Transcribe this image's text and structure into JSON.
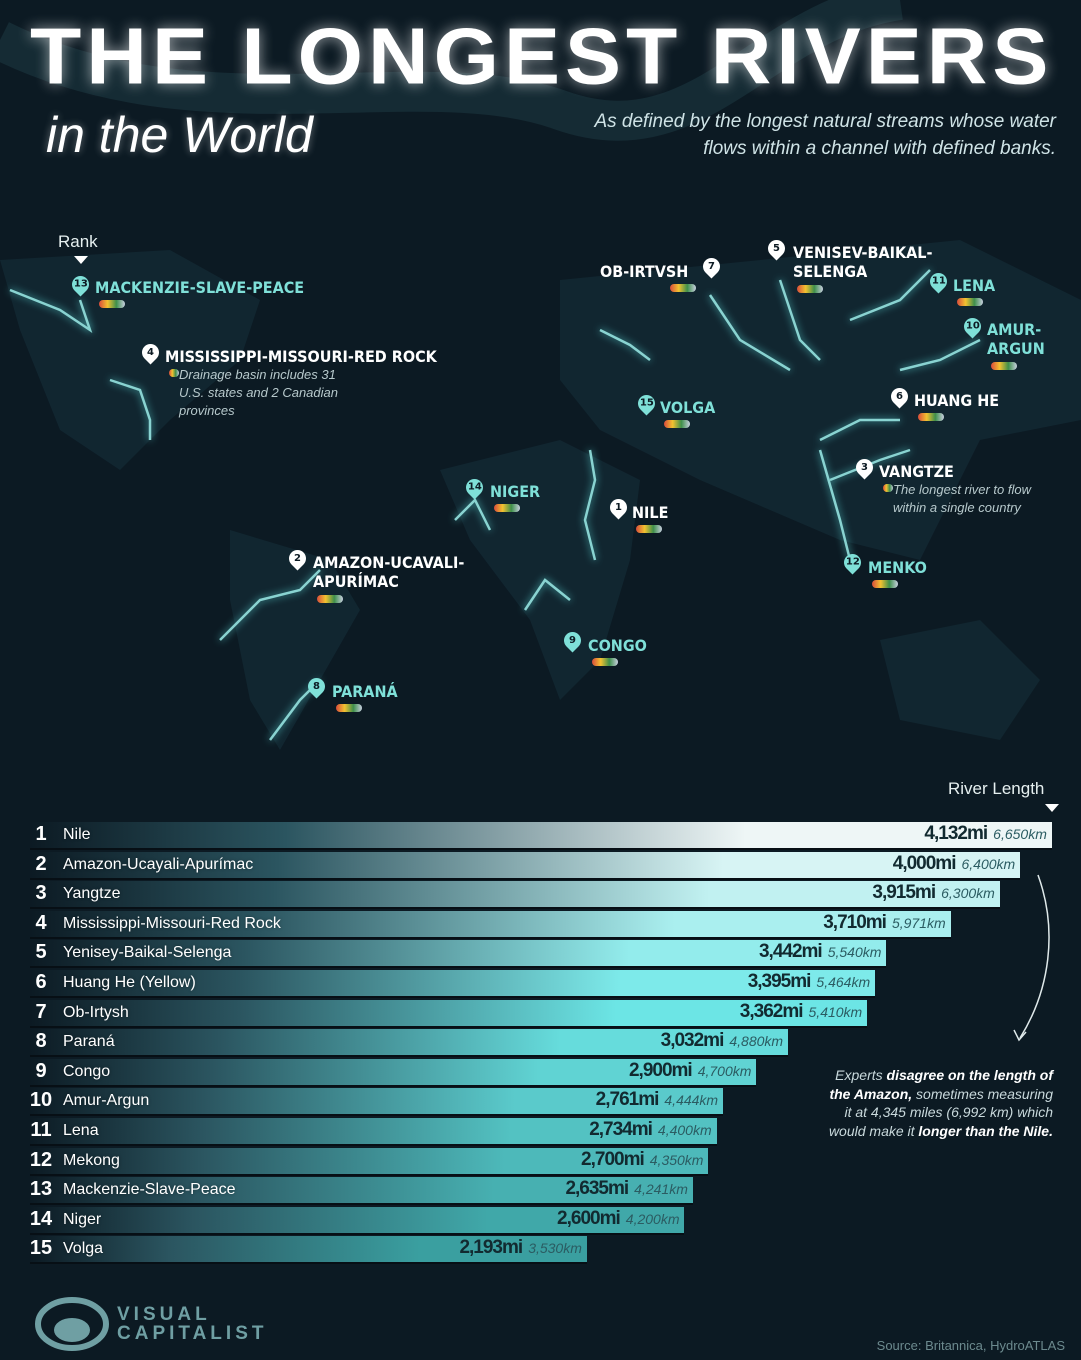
{
  "header": {
    "title": "THE LONGEST RIVERS",
    "subtitle": "in the World",
    "description": "As defined by the longest natural streams whose water flows within a channel with defined banks."
  },
  "map": {
    "rank_label": "Rank",
    "labels": [
      {
        "rank": "13",
        "name": "MACKENZIE-SLAVE-PEACE",
        "style": "teal"
      },
      {
        "rank": "4",
        "name": "MISSISSIPPI-MISSOURI-RED ROCK",
        "style": "white",
        "note": "Drainage basin includes 31 U.S. states and 2 Canadian provinces"
      },
      {
        "rank": "14",
        "name": "NIGER",
        "style": "teal"
      },
      {
        "rank": "1",
        "name": "NILE",
        "style": "white"
      },
      {
        "rank": "2",
        "name": "AMAZON-UCAVALI-",
        "name2": "APURÍMAC",
        "style": "white"
      },
      {
        "rank": "9",
        "name": "CONGO",
        "style": "teal"
      },
      {
        "rank": "8",
        "name": "PARANÁ",
        "style": "teal"
      },
      {
        "rank": "7",
        "name": "OB-IRTVSH",
        "style": "white"
      },
      {
        "rank": "5",
        "name": "VENISEV-BAIKAL-",
        "name2": "SELENGA",
        "style": "white"
      },
      {
        "rank": "11",
        "name": "LENA",
        "style": "teal"
      },
      {
        "rank": "10",
        "name": "AMUR-",
        "name2": "ARGUN",
        "style": "teal"
      },
      {
        "rank": "15",
        "name": "VOLGA",
        "style": "teal"
      },
      {
        "rank": "6",
        "name": "HUANG HE",
        "style": "white"
      },
      {
        "rank": "3",
        "name": "VANGTZE",
        "style": "white",
        "note": "The longest river to flow within a single country"
      },
      {
        "rank": "12",
        "name": "MENKO",
        "style": "teal"
      }
    ]
  },
  "chart_data": {
    "type": "bar",
    "orientation": "horizontal",
    "title": "THE LONGEST RIVERS in the World",
    "value_label": "River Length",
    "ranks": [
      "1",
      "2",
      "3",
      "4",
      "5",
      "6",
      "7",
      "8",
      "9",
      "10",
      "11",
      "12",
      "13",
      "14",
      "15"
    ],
    "categories": [
      "Nile",
      "Amazon-Ucayali-Apurímac",
      "Yangtze",
      "Mississippi-Missouri-Red Rock",
      "Yenisey-Baikal-Selenga",
      "Huang He (Yellow)",
      "Ob-Irtysh",
      "Paraná",
      "Congo",
      "Amur-Argun",
      "Lena",
      "Mekong",
      "Mackenzie-Slave-Peace",
      "Niger",
      "Volga"
    ],
    "series": [
      {
        "name": "mi",
        "values": [
          4132,
          4000,
          3915,
          3710,
          3442,
          3395,
          3362,
          3032,
          2900,
          2761,
          2734,
          2700,
          2635,
          2600,
          2193
        ]
      },
      {
        "name": "km",
        "values": [
          6650,
          6400,
          6300,
          5971,
          5540,
          5464,
          5410,
          4880,
          4700,
          4444,
          4400,
          4350,
          4241,
          4200,
          3530
        ]
      }
    ],
    "mi_labels": [
      "4,132mi",
      "4,000mi",
      "3,915mi",
      "3,710mi",
      "3,442mi",
      "3,395mi",
      "3,362mi",
      "3,032mi",
      "2,900mi",
      "2,761mi",
      "2,734mi",
      "2,700mi",
      "2,635mi",
      "2,600mi",
      "2,193mi"
    ],
    "km_labels": [
      "6,650km",
      "6,400km",
      "6,300km",
      "5,971km",
      "5,540km",
      "5,464km",
      "5,410km",
      "4,880km",
      "4,700km",
      "4,444km",
      "4,400km",
      "4,350km",
      "4,241km",
      "4,200km",
      "3,530km"
    ],
    "colors": {
      "top": "#eef6f6",
      "mid": "#6fe8e8",
      "bottom": "#3a9fa0"
    }
  },
  "amazon_note": [
    {
      "t": "Experts ",
      "b": false
    },
    {
      "t": "disagree on the length of the Amazon,",
      "b": true
    },
    {
      "t": " sometimes measuring it at 4,345 miles (6,992 km) which would make it ",
      "b": false
    },
    {
      "t": "longer than the Nile.",
      "b": true
    }
  ],
  "footer": {
    "logo": "VISUAL CAPITALIST",
    "logo_line1": "VISUAL",
    "logo_line2": "CAPITALIST",
    "source": "Source: Britannica, HydroATLAS"
  }
}
